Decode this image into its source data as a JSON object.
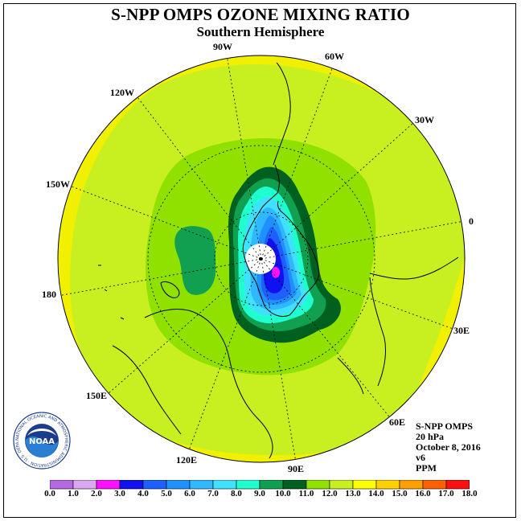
{
  "title": "S-NPP OMPS OZONE MIXING RATIO",
  "subtitle": "Southern Hemisphere",
  "longitude_labels": {
    "lon_90w": "90W",
    "lon_60w": "60W",
    "lon_30w": "30W",
    "lon_0": "0",
    "lon_30e": "30E",
    "lon_60e": "60E",
    "lon_90e": "90E",
    "lon_120e": "120E",
    "lon_150e": "150E",
    "lon_180": "180",
    "lon_150w": "150W",
    "lon_120w": "120W"
  },
  "info": {
    "instrument": "S-NPP OMPS",
    "pressure_level": "20 hPa",
    "date": "October 8, 2016",
    "version": "v6",
    "units": "PPM"
  },
  "logo": {
    "name": "NOAA",
    "ring_text": "NATIONAL OCEANIC AND ATMOSPHERIC ADMINISTRATION · U.S. DEPARTMENT OF COMMERCE"
  },
  "colorbar": {
    "ticks": [
      "0.0",
      "1.0",
      "2.0",
      "3.0",
      "4.0",
      "5.0",
      "6.0",
      "7.0",
      "8.0",
      "9.0",
      "10.0",
      "11.0",
      "12.0",
      "13.0",
      "14.0",
      "15.0",
      "16.0",
      "17.0",
      "18.0"
    ],
    "colors": [
      "#b36ae0",
      "#d9a8f0",
      "#ff10ff",
      "#1010f0",
      "#1e60ff",
      "#1e90ff",
      "#30b8ff",
      "#40e0ff",
      "#20ffd0",
      "#10a050",
      "#006020",
      "#90e000",
      "#c8f020",
      "#ffff00",
      "#ffd000",
      "#ffa000",
      "#ff6000",
      "#ff1010",
      "#805030"
    ]
  },
  "map_colors": {
    "outer": "#f0f000",
    "mid": "#c8f020",
    "inner": "#90e000",
    "dark_green": "#10a050",
    "darker_green": "#006020",
    "cyan": "#40e0ff",
    "aqua": "#20ffd0",
    "light_blue": "#30b8ff",
    "blue": "#1e90ff",
    "deep_blue": "#1e60ff",
    "core": "#1010f0",
    "magenta": "#ff10ff",
    "pole": "#ffffff"
  }
}
